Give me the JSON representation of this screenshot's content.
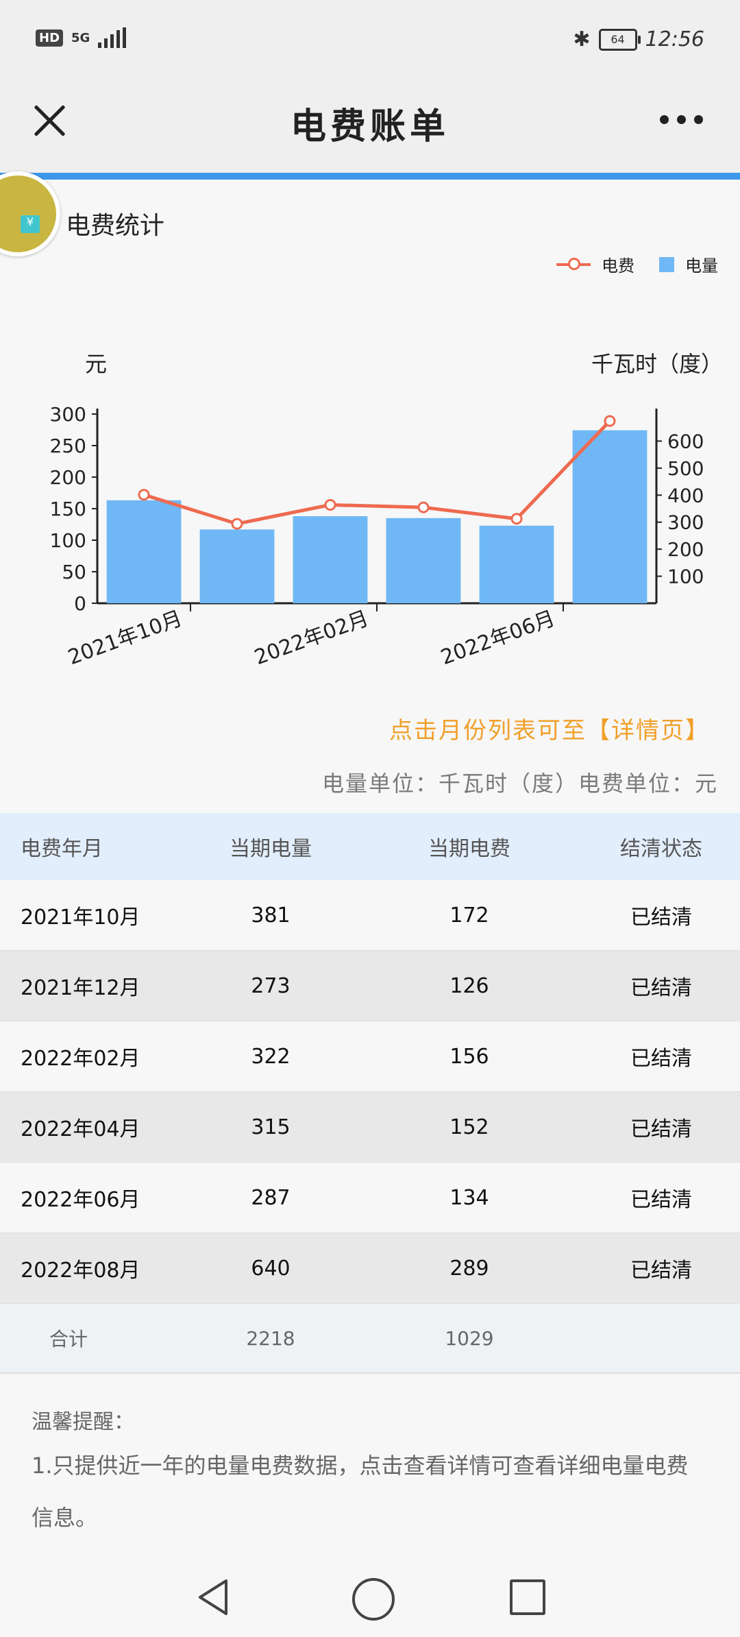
{
  "status_bar": {
    "hd": "HD",
    "network": "5G",
    "battery": "64",
    "time": "12:56"
  },
  "header": {
    "title": "电费账单"
  },
  "section": {
    "title": "电费统计"
  },
  "legend": {
    "line": "电费",
    "bar": "电量"
  },
  "chart_data": {
    "type": "bar",
    "categories": [
      "2021年10月",
      "2021年12月",
      "2022年02月",
      "2022年04月",
      "2022年06月",
      "2022年08月"
    ],
    "x_tick_labels": [
      "2021年10月",
      "2022年02月",
      "2022年06月"
    ],
    "left_axis": {
      "label": "元",
      "range": [
        0,
        300
      ],
      "ticks": [
        0,
        50,
        100,
        150,
        200,
        250,
        300
      ]
    },
    "right_axis": {
      "label": "千瓦时（度）",
      "range": [
        0,
        700
      ],
      "ticks": [
        100,
        200,
        300,
        400,
        500,
        600
      ]
    },
    "series": [
      {
        "name": "电量",
        "type": "bar",
        "axis": "right",
        "color": "#6fb8f5",
        "values": [
          381,
          273,
          322,
          315,
          287,
          640
        ]
      },
      {
        "name": "电费",
        "type": "line",
        "axis": "left",
        "color": "#ee6a50",
        "values": [
          172,
          126,
          156,
          152,
          134,
          289
        ]
      }
    ],
    "grid": false,
    "legend_position": "top-right"
  },
  "hint": {
    "click": "点击月份列表可至【详情页】",
    "units": "电量单位：千瓦时（度）电费单位：元"
  },
  "table": {
    "headers": [
      "电费年月",
      "当期电量",
      "当期电费",
      "结清状态"
    ],
    "rows": [
      {
        "month": "2021年10月",
        "usage": "381",
        "fee": "172",
        "status": "已结清"
      },
      {
        "month": "2021年12月",
        "usage": "273",
        "fee": "126",
        "status": "已结清"
      },
      {
        "month": "2022年02月",
        "usage": "322",
        "fee": "156",
        "status": "已结清"
      },
      {
        "month": "2022年04月",
        "usage": "315",
        "fee": "152",
        "status": "已结清"
      },
      {
        "month": "2022年06月",
        "usage": "287",
        "fee": "134",
        "status": "已结清"
      },
      {
        "month": "2022年08月",
        "usage": "640",
        "fee": "289",
        "status": "已结清"
      }
    ],
    "total": {
      "label": "合计",
      "usage": "2218",
      "fee": "1029"
    }
  },
  "tips": {
    "title": "温馨提醒：",
    "line1": "1.只提供近一年的电量电费数据，点击查看详情可查看详细电量电费信息。"
  },
  "icons": {
    "close": "close-icon",
    "more": "more-icon",
    "avatar": "wallet-avatar-icon",
    "back": "back-triangle-icon",
    "home": "home-circle-icon",
    "recent": "recent-square-icon"
  }
}
